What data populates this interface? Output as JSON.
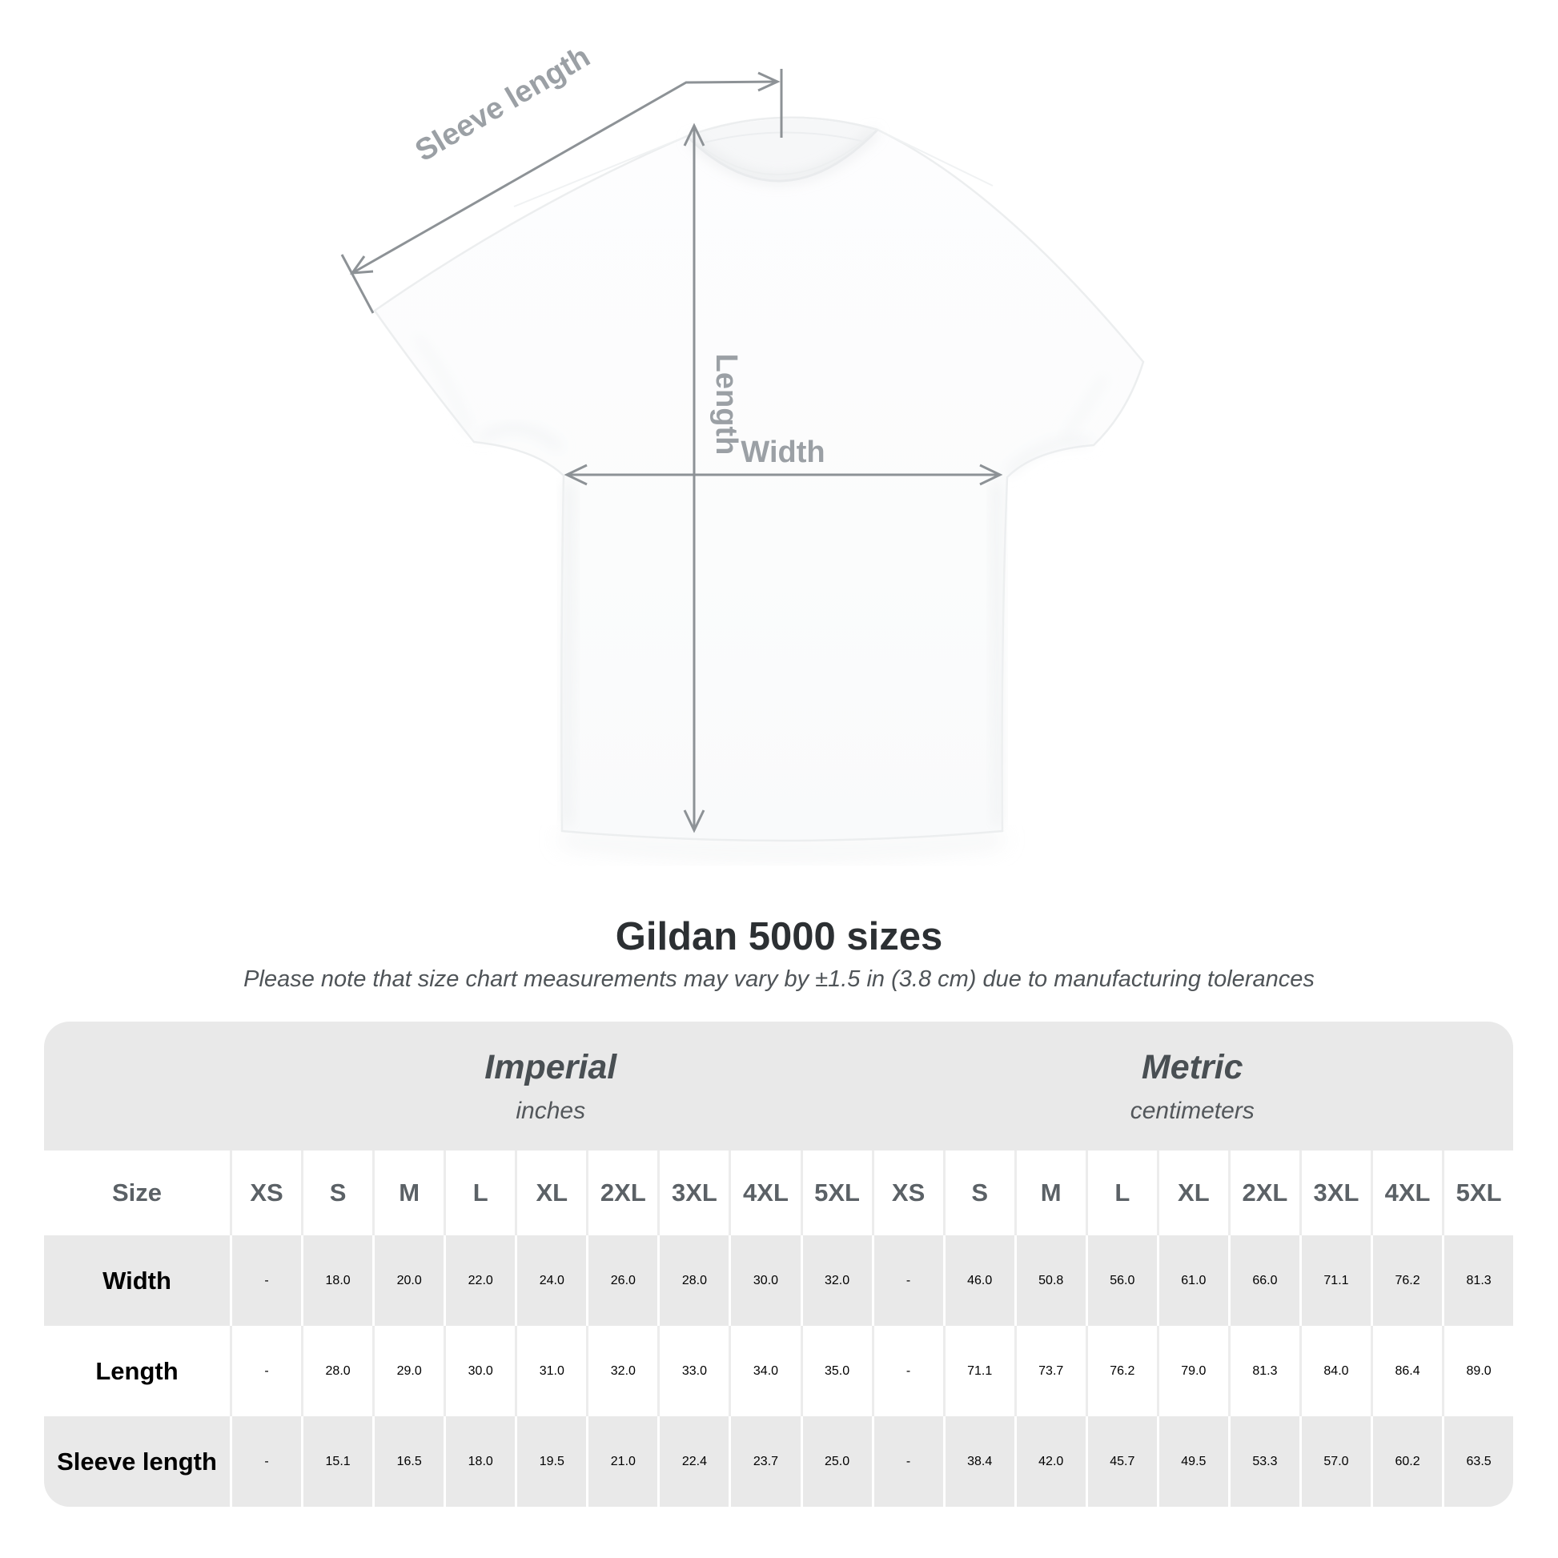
{
  "diagram": {
    "labels": {
      "sleeve_length": "Sleeve length",
      "length": "Length",
      "width": "Width"
    },
    "colors": {
      "dimension_line": "#8d9296",
      "dimension_label": "#9ba0a5",
      "shirt_edge": "#eceeef"
    }
  },
  "title": "Gildan 5000 sizes",
  "subtitle": "Please note that size chart measurements may vary by ±1.5 in (3.8 cm) due to manufacturing tolerances",
  "table": {
    "accent_gray": "#e9e9e9",
    "unit_groups": [
      {
        "name": "Imperial",
        "unit": "inches"
      },
      {
        "name": "Metric",
        "unit": "centimeters"
      }
    ],
    "size_label": "Size",
    "sizes": [
      "XS",
      "S",
      "M",
      "L",
      "XL",
      "2XL",
      "3XL",
      "4XL",
      "5XL"
    ],
    "rows": [
      {
        "label": "Width",
        "imperial": [
          "-",
          "18.0",
          "20.0",
          "22.0",
          "24.0",
          "26.0",
          "28.0",
          "30.0",
          "32.0"
        ],
        "metric": [
          "-",
          "46.0",
          "50.8",
          "56.0",
          "61.0",
          "66.0",
          "71.1",
          "76.2",
          "81.3"
        ]
      },
      {
        "label": "Length",
        "imperial": [
          "-",
          "28.0",
          "29.0",
          "30.0",
          "31.0",
          "32.0",
          "33.0",
          "34.0",
          "35.0"
        ],
        "metric": [
          "-",
          "71.1",
          "73.7",
          "76.2",
          "79.0",
          "81.3",
          "84.0",
          "86.4",
          "89.0"
        ]
      },
      {
        "label": "Sleeve length",
        "imperial": [
          "-",
          "15.1",
          "16.5",
          "18.0",
          "19.5",
          "21.0",
          "22.4",
          "23.7",
          "25.0"
        ],
        "metric": [
          "-",
          "38.4",
          "42.0",
          "45.7",
          "49.5",
          "53.3",
          "57.0",
          "60.2",
          "63.5"
        ]
      }
    ]
  }
}
